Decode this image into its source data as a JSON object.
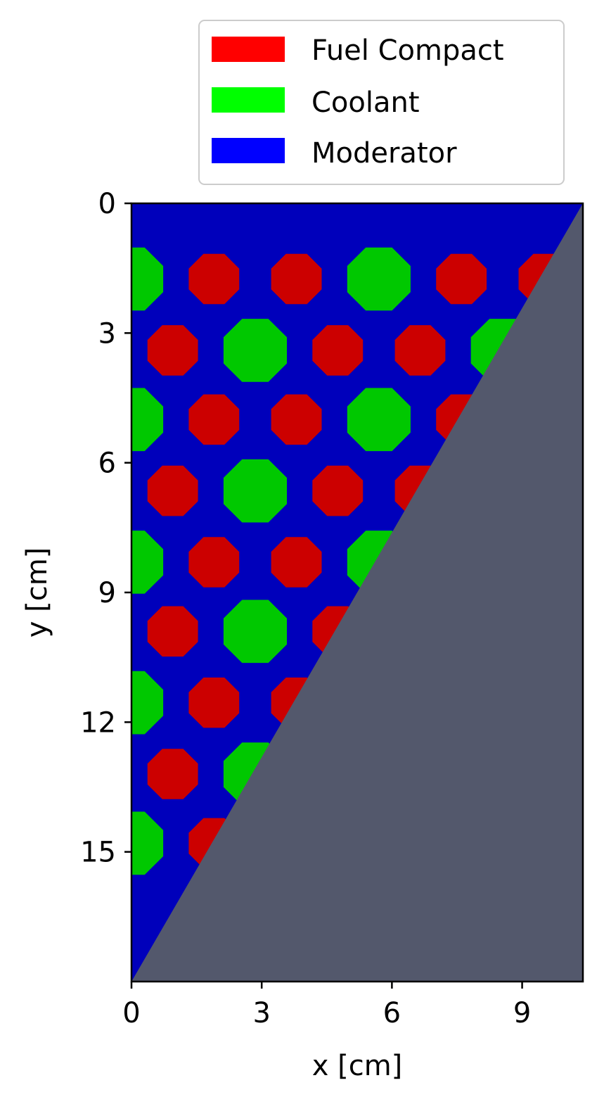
{
  "chart_data": {
    "type": "heatmap",
    "title": "",
    "xlabel": "x [cm]",
    "ylabel": "y [cm]",
    "xlim": [
      0,
      10.4
    ],
    "ylim": [
      0,
      18
    ],
    "y_inverted": true,
    "xticks": [
      {
        "value": 0,
        "label": "0"
      },
      {
        "value": 3,
        "label": "3"
      },
      {
        "value": 6,
        "label": "6"
      },
      {
        "value": 9,
        "label": "9"
      }
    ],
    "yticks": [
      {
        "value": 0,
        "label": "0"
      },
      {
        "value": 3,
        "label": "3"
      },
      {
        "value": 6,
        "label": "6"
      },
      {
        "value": 9,
        "label": "9"
      },
      {
        "value": 12,
        "label": "12"
      },
      {
        "value": 15,
        "label": "15"
      }
    ],
    "legend": {
      "position": "top-right, above plot",
      "entries": [
        {
          "label": "Fuel Compact",
          "color": "#ff0000"
        },
        {
          "label": "Coolant",
          "color": "#00ff00"
        },
        {
          "label": "Moderator",
          "color": "#0000ff"
        }
      ]
    },
    "colors": {
      "moderator": "#0000bb",
      "fuel": "#cc0000",
      "coolant": "#00c800",
      "outside_region": "#53586c"
    },
    "boundary_line": {
      "from": [
        10.4,
        0
      ],
      "to": [
        0,
        18
      ]
    },
    "fuel_pin_radius": 0.63,
    "coolant_channel_radius": 0.79,
    "cells": [
      {
        "material": "coolant",
        "x": 0.0,
        "y": 1.75
      },
      {
        "material": "fuel",
        "x": 1.9,
        "y": 1.75
      },
      {
        "material": "fuel",
        "x": 3.8,
        "y": 1.75
      },
      {
        "material": "coolant",
        "x": 5.7,
        "y": 1.75
      },
      {
        "material": "fuel",
        "x": 7.6,
        "y": 1.75
      },
      {
        "material": "fuel",
        "x": 9.5,
        "y": 1.75
      },
      {
        "material": "fuel",
        "x": 0.95,
        "y": 3.4
      },
      {
        "material": "coolant",
        "x": 2.85,
        "y": 3.4
      },
      {
        "material": "fuel",
        "x": 4.75,
        "y": 3.4
      },
      {
        "material": "fuel",
        "x": 6.65,
        "y": 3.4
      },
      {
        "material": "coolant",
        "x": 8.55,
        "y": 3.4
      },
      {
        "material": "coolant",
        "x": 0.0,
        "y": 5.0
      },
      {
        "material": "fuel",
        "x": 1.9,
        "y": 5.0
      },
      {
        "material": "fuel",
        "x": 3.8,
        "y": 5.0
      },
      {
        "material": "coolant",
        "x": 5.7,
        "y": 5.0
      },
      {
        "material": "fuel",
        "x": 7.6,
        "y": 5.0
      },
      {
        "material": "fuel",
        "x": 0.95,
        "y": 6.65
      },
      {
        "material": "coolant",
        "x": 2.85,
        "y": 6.65
      },
      {
        "material": "fuel",
        "x": 4.75,
        "y": 6.65
      },
      {
        "material": "fuel",
        "x": 6.65,
        "y": 6.65
      },
      {
        "material": "coolant",
        "x": 0.0,
        "y": 8.3
      },
      {
        "material": "fuel",
        "x": 1.9,
        "y": 8.3
      },
      {
        "material": "fuel",
        "x": 3.8,
        "y": 8.3
      },
      {
        "material": "coolant",
        "x": 5.7,
        "y": 8.3
      },
      {
        "material": "fuel",
        "x": 0.95,
        "y": 9.9
      },
      {
        "material": "coolant",
        "x": 2.85,
        "y": 9.9
      },
      {
        "material": "fuel",
        "x": 4.75,
        "y": 9.9
      },
      {
        "material": "coolant",
        "x": 0.0,
        "y": 11.55
      },
      {
        "material": "fuel",
        "x": 1.9,
        "y": 11.55
      },
      {
        "material": "fuel",
        "x": 3.8,
        "y": 11.55
      },
      {
        "material": "fuel",
        "x": 0.95,
        "y": 13.2
      },
      {
        "material": "coolant",
        "x": 2.85,
        "y": 13.2
      },
      {
        "material": "coolant",
        "x": 0.0,
        "y": 14.8
      },
      {
        "material": "fuel",
        "x": 1.9,
        "y": 14.8
      }
    ]
  }
}
